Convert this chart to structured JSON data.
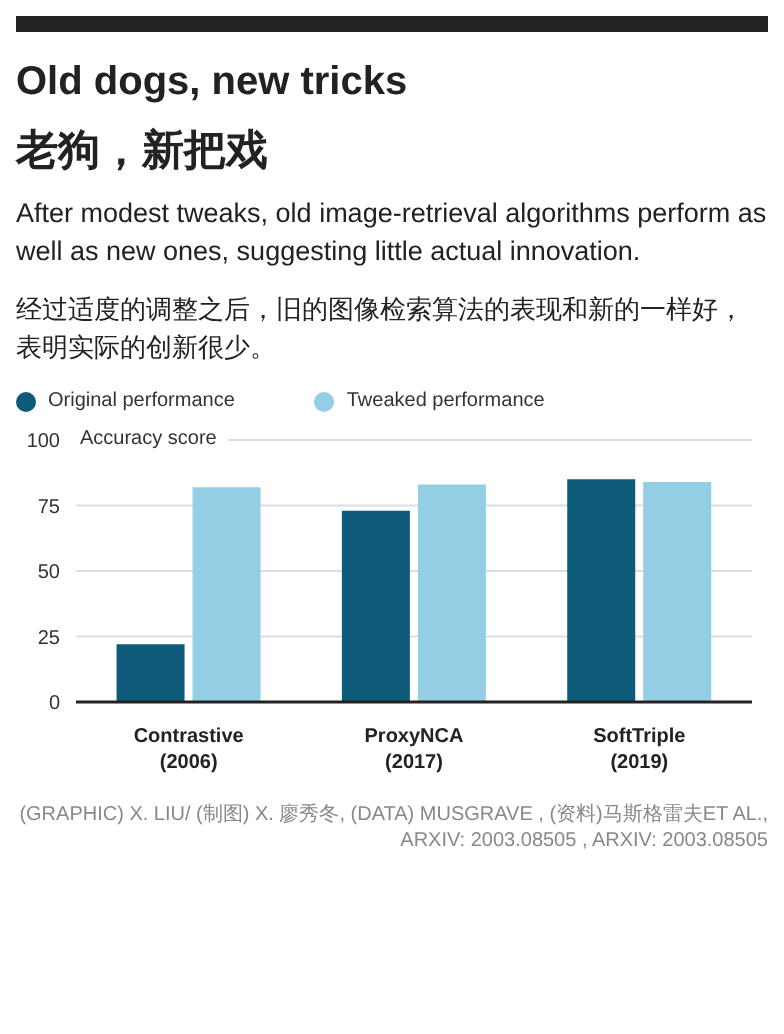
{
  "chart_data": {
    "type": "bar",
    "title": "Old dogs, new tricks",
    "subtitle": "老狗，新把戏",
    "annotations": [
      "After modest tweaks, old image-retrieval algorithms perform as well as new ones, suggesting little actual innovation.",
      "经过适度的调整之后，旧的图像检索算法的表现和新的一样好，表明实际的创新很少。",
      "(GRAPHIC) X. LIU/ (制图) X. 廖秀冬, (DATA) MUSGRAVE , (资料)马斯格雷夫ET AL., ARXIV: 2003.08505 , ARXIV: 2003.08505"
    ],
    "ylabel": "Accuracy score",
    "categories": [
      "Contrastive (2006)",
      "ProxyNCA (2017)",
      "SoftTriple (2019)"
    ],
    "series": [
      {
        "name": "Original performance",
        "color": "#0d5a7b",
        "values": [
          22,
          73,
          85
        ]
      },
      {
        "name": "Tweaked performance",
        "color": "#94cee4",
        "values": [
          82,
          83,
          84
        ]
      }
    ],
    "ylim": [
      0,
      100
    ],
    "yticks": [
      0,
      25,
      50,
      75,
      100
    ],
    "grid": "y",
    "legend": "top left",
    "marker": "circle"
  }
}
